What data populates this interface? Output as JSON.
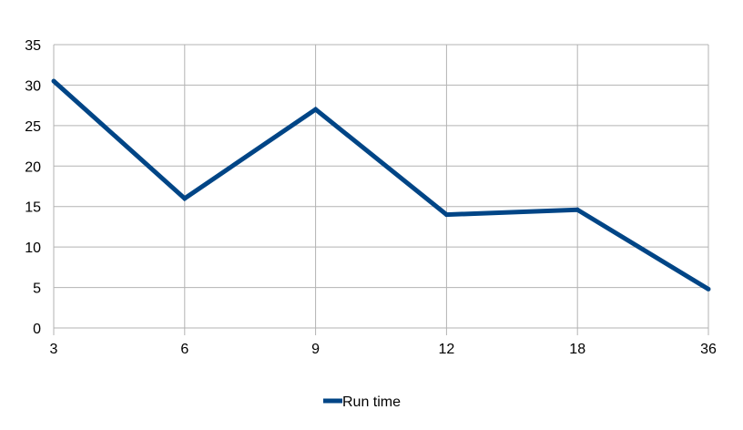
{
  "chart_data": {
    "type": "line",
    "categories": [
      "3",
      "6",
      "9",
      "12",
      "18",
      "36"
    ],
    "series": [
      {
        "name": "Run time",
        "values": [
          30.5,
          16,
          27,
          14,
          14.6,
          4.8
        ],
        "color": "#004586"
      }
    ],
    "ylim": [
      0,
      35
    ],
    "yticks": [
      0,
      5,
      10,
      15,
      20,
      25,
      30,
      35
    ],
    "grid": true,
    "legend": "bottom"
  }
}
